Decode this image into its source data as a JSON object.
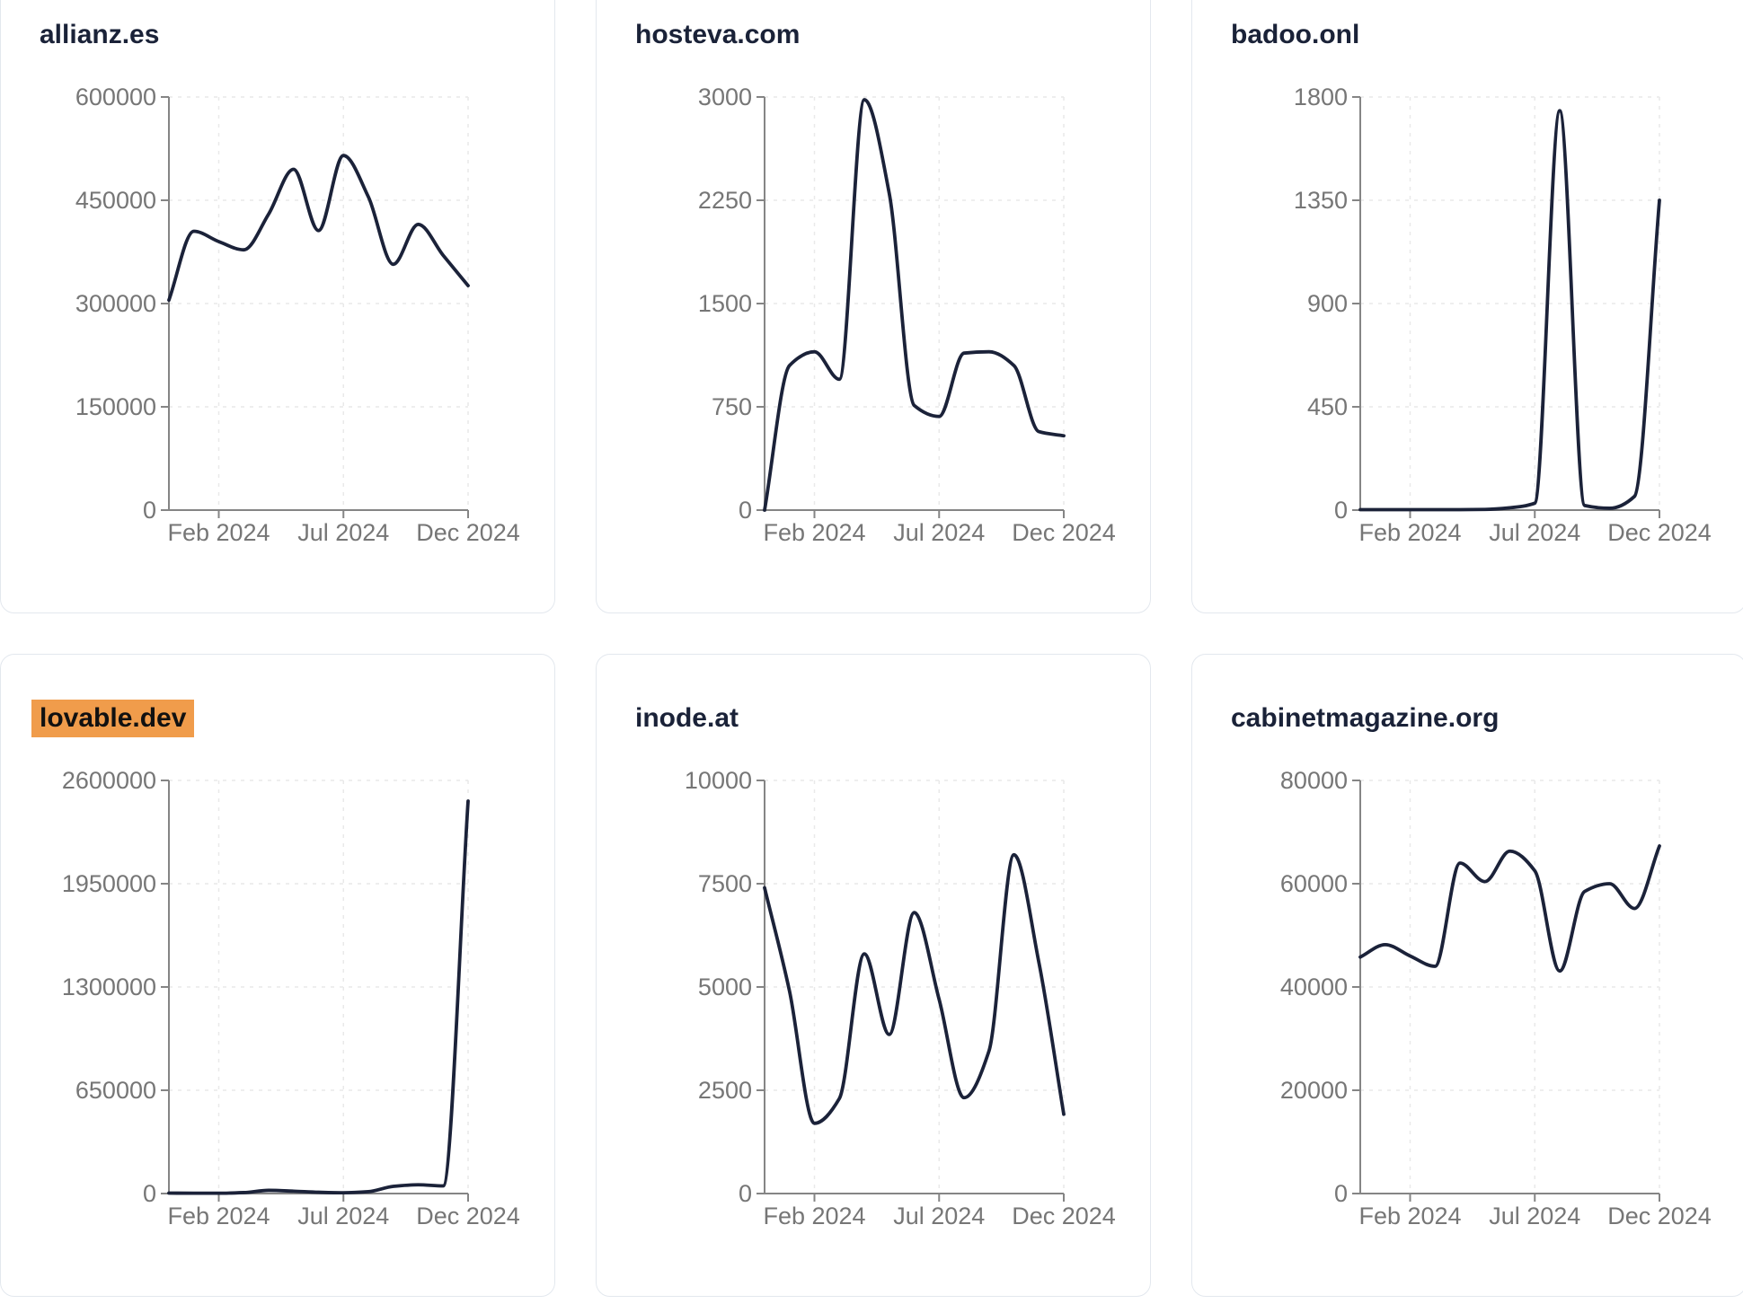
{
  "page": {
    "background": "#ffffff",
    "description_colors": {
      "line": "#1b2239",
      "axis": "#858585",
      "tick_text": "#767676",
      "grid": "#e9e9e9",
      "card_border": "#e3e8ee",
      "title_text": "#1a2238",
      "highlight_bg": "#f09c4b",
      "highlight_text": "#111111"
    }
  },
  "chart_data": [
    {
      "type": "line",
      "title": "allianz.es",
      "highlighted": false,
      "x": [
        "Dec 2023",
        "Jan 2024",
        "Feb 2024",
        "Mar 2024",
        "Apr 2024",
        "May 2024",
        "Jun 2024",
        "Jul 2024",
        "Aug 2024",
        "Sep 2024",
        "Oct 2024",
        "Nov 2024",
        "Dec 2024"
      ],
      "values": [
        305000,
        405000,
        390000,
        378000,
        430000,
        495000,
        406000,
        515000,
        455000,
        357000,
        415000,
        370000,
        326000
      ],
      "ylim": [
        0,
        600000
      ],
      "y_ticks": [
        600000,
        450000,
        300000,
        150000,
        0
      ],
      "x_tick_labels": [
        "Feb 2024",
        "Jul 2024",
        "Dec 2024"
      ],
      "x_tick_month_index": [
        2,
        7,
        12
      ],
      "grid": true,
      "legend": "none"
    },
    {
      "type": "line",
      "title": "hosteva.com",
      "highlighted": false,
      "x": [
        "Dec 2023",
        "Jan 2024",
        "Feb 2024",
        "Mar 2024",
        "Apr 2024",
        "May 2024",
        "Jun 2024",
        "Jul 2024",
        "Aug 2024",
        "Sep 2024",
        "Oct 2024",
        "Nov 2024",
        "Dec 2024"
      ],
      "values": [
        0,
        1050,
        1150,
        950,
        2980,
        2300,
        760,
        680,
        1140,
        1150,
        1050,
        570,
        540
      ],
      "ylim": [
        0,
        3000
      ],
      "y_ticks": [
        3000,
        2250,
        1500,
        750,
        0
      ],
      "x_tick_labels": [
        "Feb 2024",
        "Jul 2024",
        "Dec 2024"
      ],
      "x_tick_month_index": [
        2,
        7,
        12
      ],
      "grid": true,
      "legend": "none"
    },
    {
      "type": "line",
      "title": "badoo.onl",
      "highlighted": false,
      "x": [
        "Dec 2023",
        "Jan 2024",
        "Feb 2024",
        "Mar 2024",
        "Apr 2024",
        "May 2024",
        "Jun 2024",
        "Jul 2024",
        "Aug 2024",
        "Sep 2024",
        "Oct 2024",
        "Nov 2024",
        "Dec 2024"
      ],
      "values": [
        2,
        2,
        2,
        2,
        2,
        3,
        10,
        30,
        1740,
        20,
        8,
        60,
        1350
      ],
      "ylim": [
        0,
        1800
      ],
      "y_ticks": [
        1800,
        1350,
        900,
        450,
        0
      ],
      "x_tick_labels": [
        "Feb 2024",
        "Jul 2024",
        "Dec 2024"
      ],
      "x_tick_month_index": [
        2,
        7,
        12
      ],
      "grid": true,
      "legend": "none"
    },
    {
      "type": "line",
      "title": "lovable.dev",
      "highlighted": true,
      "x": [
        "Dec 2023",
        "Jan 2024",
        "Feb 2024",
        "Mar 2024",
        "Apr 2024",
        "May 2024",
        "Jun 2024",
        "Jul 2024",
        "Aug 2024",
        "Sep 2024",
        "Oct 2024",
        "Nov 2024",
        "Dec 2024"
      ],
      "values": [
        3000,
        2000,
        2000,
        6000,
        20000,
        15000,
        8000,
        5000,
        12000,
        45000,
        55000,
        48000,
        2470000
      ],
      "ylim": [
        0,
        2600000
      ],
      "y_ticks": [
        2600000,
        1950000,
        1300000,
        650000,
        0
      ],
      "x_tick_labels": [
        "Feb 2024",
        "Jul 2024",
        "Dec 2024"
      ],
      "x_tick_month_index": [
        2,
        7,
        12
      ],
      "grid": true,
      "legend": "none"
    },
    {
      "type": "line",
      "title": "inode.at",
      "highlighted": false,
      "x": [
        "Dec 2023",
        "Jan 2024",
        "Feb 2024",
        "Mar 2024",
        "Apr 2024",
        "May 2024",
        "Jun 2024",
        "Jul 2024",
        "Aug 2024",
        "Sep 2024",
        "Oct 2024",
        "Nov 2024",
        "Dec 2024"
      ],
      "values": [
        7400,
        4900,
        1700,
        2300,
        5800,
        3850,
        6800,
        4700,
        2320,
        3450,
        8200,
        5600,
        1920
      ],
      "ylim": [
        0,
        10000
      ],
      "y_ticks": [
        10000,
        7500,
        5000,
        2500,
        0
      ],
      "x_tick_labels": [
        "Feb 2024",
        "Jul 2024",
        "Dec 2024"
      ],
      "x_tick_month_index": [
        2,
        7,
        12
      ],
      "grid": true,
      "legend": "none"
    },
    {
      "type": "line",
      "title": "cabinetmagazine.org",
      "highlighted": false,
      "x": [
        "Dec 2023",
        "Jan 2024",
        "Feb 2024",
        "Mar 2024",
        "Apr 2024",
        "May 2024",
        "Jun 2024",
        "Jul 2024",
        "Aug 2024",
        "Sep 2024",
        "Oct 2024",
        "Nov 2024",
        "Dec 2024"
      ],
      "values": [
        45800,
        48200,
        46000,
        44000,
        64000,
        60400,
        66300,
        62500,
        43100,
        58500,
        60000,
        55200,
        67300
      ],
      "ylim": [
        0,
        80000
      ],
      "y_ticks": [
        80000,
        60000,
        40000,
        20000,
        0
      ],
      "x_tick_labels": [
        "Feb 2024",
        "Jul 2024",
        "Dec 2024"
      ],
      "x_tick_month_index": [
        2,
        7,
        12
      ],
      "grid": true,
      "legend": "none"
    }
  ]
}
